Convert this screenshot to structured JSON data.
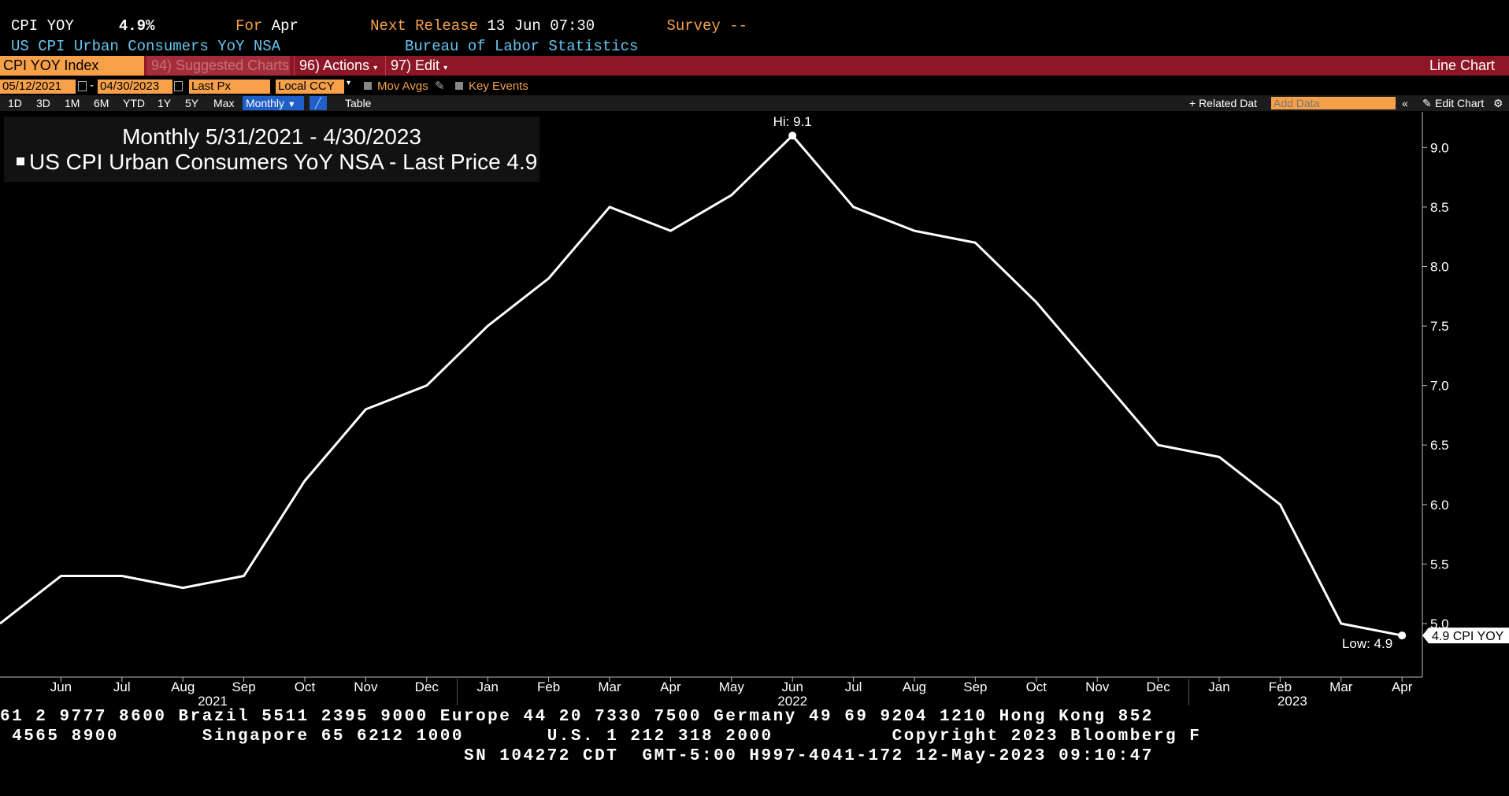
{
  "header": {
    "ticker": "CPI YOY",
    "value": "4.9%",
    "for_label": "For",
    "for_value": "Apr",
    "next_release_label": "Next Release",
    "next_release_value": "13 Jun 07:30",
    "survey_label": "Survey",
    "survey_value": "--",
    "description": "US CPI Urban Consumers YoY NSA",
    "source": "Bureau of Labor Statistics"
  },
  "toolbar": {
    "security": "CPI YOY Index",
    "suggested": "94) Suggested Charts",
    "actions": "96) Actions",
    "edit": "97) Edit",
    "chart_type": "Line Chart"
  },
  "controls": {
    "start_date": "05/12/2021",
    "dash": "-",
    "end_date": "04/30/2023",
    "field": "Last Px",
    "currency": "Local CCY",
    "mov_avgs": "Mov Avgs",
    "key_events": "Key Events",
    "ranges": [
      "1D",
      "3D",
      "1M",
      "6M",
      "YTD",
      "1Y",
      "5Y",
      "Max"
    ],
    "frequency": "Monthly",
    "table": "Table",
    "related": "+ Related Dat",
    "add_data_placeholder": "Add Data",
    "edit_chart": "Edit Chart"
  },
  "legend": {
    "title": "Monthly 5/31/2021 - 4/30/2023",
    "series": "US CPI Urban Consumers YoY NSA - Last Price",
    "last": "4.9"
  },
  "chart_data": {
    "type": "line",
    "x": [
      "2021-05",
      "2021-06",
      "2021-07",
      "2021-08",
      "2021-09",
      "2021-10",
      "2021-11",
      "2021-12",
      "2022-01",
      "2022-02",
      "2022-03",
      "2022-04",
      "2022-05",
      "2022-06",
      "2022-07",
      "2022-08",
      "2022-09",
      "2022-10",
      "2022-11",
      "2022-12",
      "2023-01",
      "2023-02",
      "2023-03",
      "2023-04"
    ],
    "series": [
      {
        "name": "CPI YOY",
        "values": [
          5.0,
          5.4,
          5.4,
          5.3,
          5.4,
          6.2,
          6.8,
          7.0,
          7.5,
          7.9,
          8.5,
          8.3,
          8.6,
          9.1,
          8.5,
          8.3,
          8.2,
          7.7,
          7.1,
          6.5,
          6.4,
          6.0,
          5.0,
          4.9
        ]
      }
    ],
    "x_tick_labels": [
      "Jun",
      "Jul",
      "Aug",
      "Sep",
      "Oct",
      "Nov",
      "Dec",
      "Jan",
      "Feb",
      "Mar",
      "Apr",
      "May",
      "Jun",
      "Jul",
      "Aug",
      "Sep",
      "Oct",
      "Nov",
      "Dec",
      "Jan",
      "Feb",
      "Mar",
      "Apr"
    ],
    "year_labels": [
      "2021",
      "2022",
      "2023"
    ],
    "y_ticks": [
      "5.0",
      "5.5",
      "6.0",
      "6.5",
      "7.0",
      "7.5",
      "8.0",
      "8.5",
      "9.0"
    ],
    "ylim": [
      4.55,
      9.3
    ],
    "hi_label": "Hi: 9.1",
    "low_label": "Low: 4.9",
    "last_label": "4.9 CPI YOY",
    "line_color": "#ffffff",
    "background": "#000000"
  },
  "footer": {
    "line1": "61 2 9777 8600 Brazil 5511 2395 9000 Europe 44 20 7330 7500 Germany 49 69 9204 1210 Hong Kong 852",
    "line2": " 4565 8900       Singapore 65 6212 1000       U.S. 1 212 318 2000          Copyright 2023 Bloomberg F",
    "line3": "                                       SN 104272 CDT  GMT-5:00 H997-4041-172 12-May-2023 09:10:47"
  }
}
